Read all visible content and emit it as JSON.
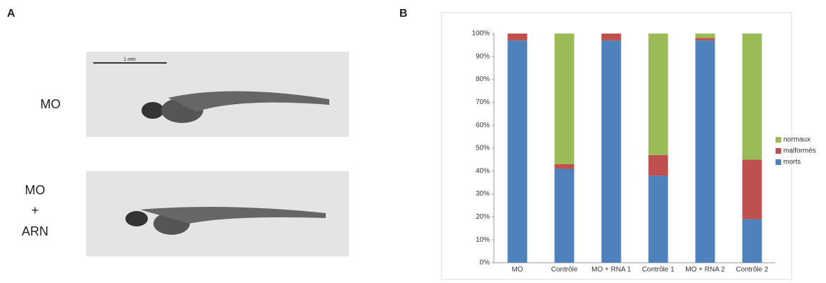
{
  "panel_labels": [
    "A",
    "B"
  ],
  "images": [
    {
      "label_lines": [
        "MO"
      ],
      "scale_bar": "1 mm"
    },
    {
      "label_lines": [
        "MO",
        "+",
        "ARN"
      ]
    }
  ],
  "chart_data": {
    "type": "stacked_bar",
    "categories": [
      "MO",
      "Contrôle",
      "MO + RNA 1",
      "Contrôle 1",
      "MO + RNA 2",
      "Contrôle 2"
    ],
    "series": [
      {
        "name": "morts",
        "color": "#4f81bd",
        "values": [
          97,
          41,
          97,
          38,
          97,
          19
        ]
      },
      {
        "name": "malformés",
        "color": "#c0504d",
        "values": [
          3,
          2,
          3,
          9,
          1,
          26
        ]
      },
      {
        "name": "normaux",
        "color": "#9bbb59",
        "values": [
          0,
          57,
          0,
          53,
          2,
          55
        ]
      }
    ],
    "ylim": [
      0,
      100
    ],
    "yticks": [
      {
        "value": 0,
        "label": "0%"
      },
      {
        "value": 10,
        "label": "10%"
      },
      {
        "value": 20,
        "label": "20%"
      },
      {
        "value": 30,
        "label": "30%"
      },
      {
        "value": 40,
        "label": "40%"
      },
      {
        "value": 50,
        "label": "50%"
      },
      {
        "value": 60,
        "label": "60%"
      },
      {
        "value": 70,
        "label": "70%"
      },
      {
        "value": 80,
        "label": "80%"
      },
      {
        "value": 90,
        "label": "90%"
      },
      {
        "value": 100,
        "label": "100%"
      }
    ],
    "legend": "right"
  }
}
